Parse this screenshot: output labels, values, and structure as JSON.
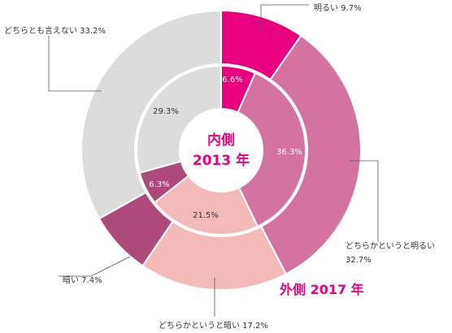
{
  "chart_data": {
    "type": "donut",
    "categories": [
      "明るい",
      "どちらかというと明るい",
      "どちらかというと暗い",
      "暗い",
      "どちらとも言えない"
    ],
    "colors": [
      "#e8007f",
      "#d4739f",
      "#f3bab8",
      "#ad4a7a",
      "#dcdcdc"
    ],
    "series": [
      {
        "name": "内側 2013 年",
        "line1": "内側",
        "line2": "2013 年",
        "values": [
          6.6,
          36.3,
          21.5,
          6.3,
          29.3
        ]
      },
      {
        "name": "外側 2017 年",
        "values": [
          9.7,
          32.7,
          17.2,
          7.4,
          33.2
        ]
      }
    ],
    "outer_labels": [
      {
        "text": "明るい 9.7%"
      },
      {
        "text": "どちらかというと明るい",
        "text2": "32.7%"
      },
      {
        "text": "どちらかというと暗い 17.2%"
      },
      {
        "text": "暗い 7.4%"
      },
      {
        "text": "どちらとも言えない 33.2%"
      }
    ],
    "inner_labels": [
      "6.6%",
      "36.3%",
      "21.5%",
      "6.3%",
      "29.3%"
    ],
    "inner_label_colors": [
      "#ffffff",
      "#ffffff",
      "#333333",
      "#ffffff",
      "#333333"
    ],
    "accent_color": "#e8007f"
  }
}
